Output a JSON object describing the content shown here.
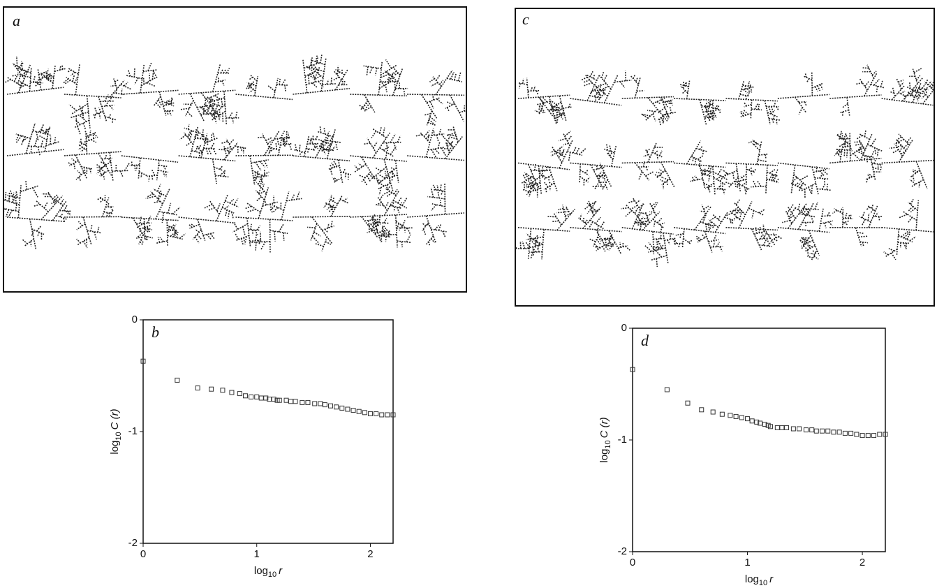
{
  "images": [
    {
      "label": "a"
    },
    {
      "label": "c"
    }
  ],
  "chart_data": [
    {
      "type": "scatter",
      "label": "b",
      "xlabel": [
        "log",
        "10",
        "r"
      ],
      "ylabel": [
        "log",
        "10",
        "C (r)"
      ],
      "x": [
        0,
        0.3,
        0.48,
        0.6,
        0.7,
        0.78,
        0.85,
        0.9,
        0.95,
        1.0,
        1.04,
        1.08,
        1.11,
        1.15,
        1.18,
        1.2,
        1.26,
        1.3,
        1.34,
        1.4,
        1.45,
        1.51,
        1.56,
        1.6,
        1.65,
        1.7,
        1.75,
        1.8,
        1.85,
        1.9,
        1.95,
        2.0,
        2.05,
        2.1,
        2.15,
        2.2
      ],
      "values": [
        -0.37,
        -0.54,
        -0.61,
        -0.62,
        -0.63,
        -0.65,
        -0.66,
        -0.68,
        -0.69,
        -0.69,
        -0.7,
        -0.7,
        -0.71,
        -0.71,
        -0.72,
        -0.72,
        -0.72,
        -0.73,
        -0.73,
        -0.74,
        -0.74,
        -0.75,
        -0.75,
        -0.76,
        -0.77,
        -0.78,
        -0.79,
        -0.8,
        -0.81,
        -0.82,
        -0.83,
        -0.84,
        -0.84,
        -0.85,
        -0.85,
        -0.85
      ],
      "color": "#333",
      "xlim": [
        0,
        2.2
      ],
      "ylim": [
        -2,
        0
      ],
      "xticks": [
        0,
        1,
        2
      ],
      "yticks": [
        -2,
        -1,
        0
      ]
    },
    {
      "type": "scatter",
      "label": "d",
      "xlabel": [
        "log",
        "10",
        "r"
      ],
      "ylabel": [
        "log",
        "10",
        "C (r)"
      ],
      "x": [
        0,
        0.3,
        0.48,
        0.6,
        0.7,
        0.78,
        0.85,
        0.9,
        0.95,
        1.0,
        1.04,
        1.08,
        1.11,
        1.15,
        1.18,
        1.2,
        1.26,
        1.3,
        1.34,
        1.4,
        1.45,
        1.51,
        1.56,
        1.6,
        1.65,
        1.7,
        1.75,
        1.8,
        1.85,
        1.9,
        1.95,
        2.0,
        2.05,
        2.1,
        2.15,
        2.2
      ],
      "values": [
        -0.37,
        -0.55,
        -0.67,
        -0.73,
        -0.75,
        -0.77,
        -0.78,
        -0.79,
        -0.8,
        -0.81,
        -0.83,
        -0.84,
        -0.85,
        -0.86,
        -0.87,
        -0.88,
        -0.89,
        -0.89,
        -0.89,
        -0.9,
        -0.9,
        -0.91,
        -0.91,
        -0.92,
        -0.92,
        -0.92,
        -0.93,
        -0.93,
        -0.94,
        -0.94,
        -0.95,
        -0.96,
        -0.96,
        -0.96,
        -0.95,
        -0.95
      ],
      "color": "#333",
      "xlim": [
        0,
        2.2
      ],
      "ylim": [
        -2,
        0
      ],
      "xticks": [
        0,
        1,
        2
      ],
      "yticks": [
        -2,
        -1,
        0
      ]
    }
  ]
}
